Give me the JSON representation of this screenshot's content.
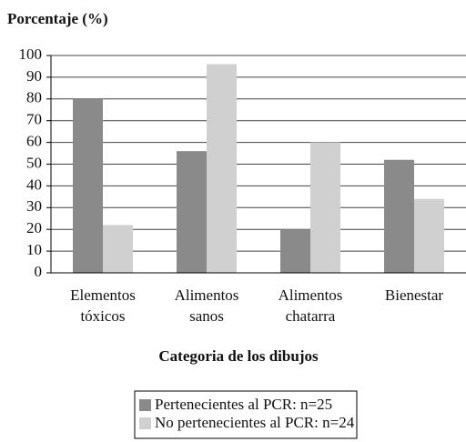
{
  "chart_data": {
    "type": "bar",
    "title": "Porcentaje (%)",
    "x_label": "Categoria de los dibujos",
    "categories": [
      "Elementos tóxicos",
      "Alimentos sanos",
      "Alimentos chatarra",
      "Bienestar"
    ],
    "series": [
      {
        "name": "Pertenecientes al PCR: n=25",
        "color": "#8a8a8a",
        "values": [
          80,
          56,
          20,
          52
        ]
      },
      {
        "name": "No pertenecientes al PCR: n=24",
        "color": "#d0d0d0",
        "values": [
          22,
          96,
          60,
          34
        ]
      }
    ],
    "ylim": [
      0,
      100
    ],
    "yticks": [
      0,
      10,
      20,
      30,
      40,
      50,
      60,
      70,
      80,
      90,
      100
    ],
    "grid": true,
    "legend": "bottom"
  }
}
